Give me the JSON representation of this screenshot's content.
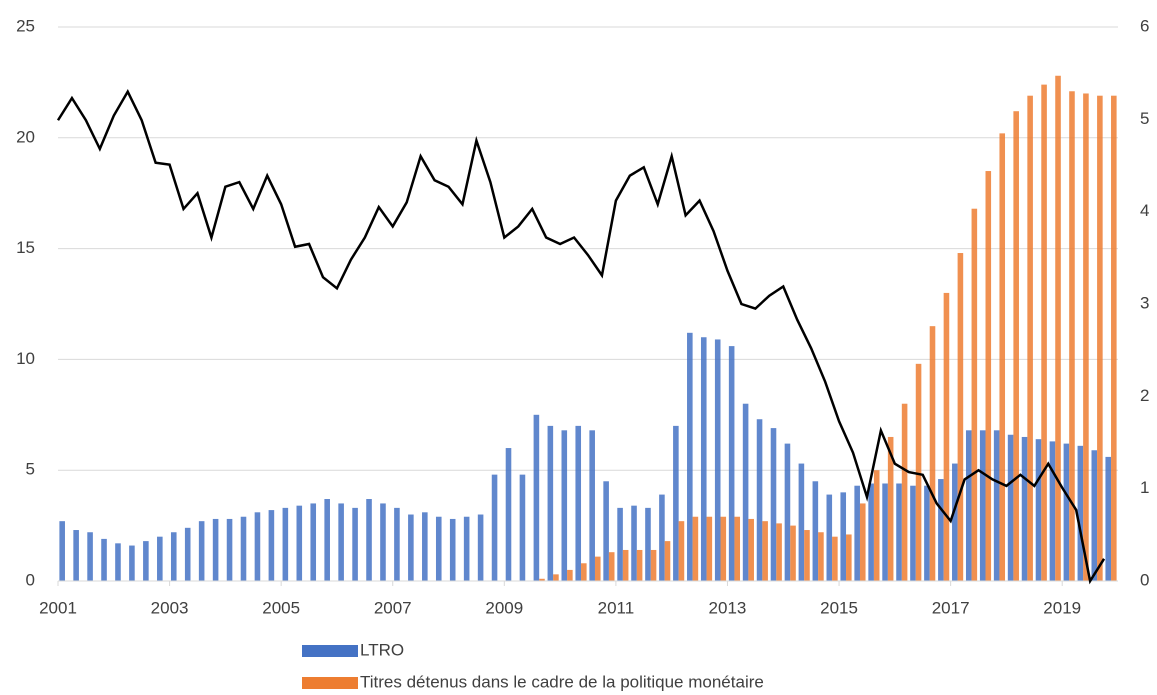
{
  "chart_data": {
    "type": "bar",
    "x": [
      2001,
      2001.25,
      2001.5,
      2001.75,
      2002,
      2002.25,
      2002.5,
      2002.75,
      2003,
      2003.25,
      2003.5,
      2003.75,
      2004,
      2004.25,
      2004.5,
      2004.75,
      2005,
      2005.25,
      2005.5,
      2005.75,
      2006,
      2006.25,
      2006.5,
      2006.75,
      2007,
      2007.25,
      2007.5,
      2007.75,
      2008,
      2008.25,
      2008.5,
      2008.75,
      2009,
      2009.25,
      2009.5,
      2009.75,
      2010,
      2010.25,
      2010.5,
      2010.75,
      2011,
      2011.25,
      2011.5,
      2011.75,
      2012,
      2012.25,
      2012.5,
      2012.75,
      2013,
      2013.25,
      2013.5,
      2013.75,
      2014,
      2014.25,
      2014.5,
      2014.75,
      2015,
      2015.25,
      2015.5,
      2015.75,
      2016,
      2016.25,
      2016.5,
      2016.75,
      2017,
      2017.25,
      2017.5,
      2017.75,
      2018,
      2018.25,
      2018.5,
      2018.75,
      2019,
      2019.25,
      2019.5,
      2019.75
    ],
    "series": [
      {
        "name": "LTRO",
        "color": "#4472c4",
        "values": [
          2.7,
          2.3,
          2.2,
          1.9,
          1.7,
          1.6,
          1.8,
          2.0,
          2.2,
          2.4,
          2.7,
          2.8,
          2.8,
          2.9,
          3.1,
          3.2,
          3.3,
          3.4,
          3.5,
          3.7,
          3.5,
          3.3,
          3.7,
          3.5,
          3.3,
          3.0,
          3.1,
          2.9,
          2.8,
          2.9,
          3.0,
          4.8,
          6.0,
          4.8,
          7.5,
          7.0,
          6.8,
          7.0,
          6.8,
          4.5,
          3.3,
          3.4,
          3.3,
          3.9,
          7.0,
          11.2,
          11.0,
          10.9,
          10.6,
          8.0,
          7.3,
          6.9,
          6.2,
          5.3,
          4.5,
          3.9,
          4.0,
          4.3,
          4.4,
          4.4,
          4.4,
          4.3,
          4.3,
          4.6,
          5.3,
          6.8,
          6.8,
          6.8,
          6.6,
          6.5,
          6.4,
          6.3,
          6.2,
          6.1,
          5.9,
          5.6
        ]
      },
      {
        "name": "Titres détenus dans le cadre de la politique monétaire",
        "color": "#ed7d31",
        "values": [
          0,
          0,
          0,
          0,
          0,
          0,
          0,
          0,
          0,
          0,
          0,
          0,
          0,
          0,
          0,
          0,
          0,
          0,
          0,
          0,
          0,
          0,
          0,
          0,
          0,
          0,
          0,
          0,
          0,
          0,
          0,
          0,
          0,
          0,
          0.1,
          0.3,
          0.5,
          0.8,
          1.1,
          1.3,
          1.4,
          1.4,
          1.4,
          1.8,
          2.7,
          2.9,
          2.9,
          2.9,
          2.9,
          2.8,
          2.7,
          2.6,
          2.5,
          2.3,
          2.2,
          2.0,
          2.1,
          3.5,
          5.0,
          6.5,
          8.0,
          9.8,
          11.5,
          13.0,
          14.8,
          16.8,
          18.5,
          20.2,
          21.2,
          21.9,
          22.4,
          22.8,
          22.1,
          22.0,
          21.9,
          21.9
        ]
      },
      {
        "type": "line",
        "axis": "y2",
        "color": "#000000",
        "values": [
          4.99,
          5.23,
          4.99,
          4.68,
          5.04,
          5.3,
          4.99,
          4.53,
          4.51,
          4.03,
          4.2,
          3.72,
          4.27,
          4.32,
          4.03,
          4.39,
          4.08,
          3.62,
          3.65,
          3.29,
          3.17,
          3.48,
          3.72,
          4.05,
          3.84,
          4.1,
          4.6,
          4.34,
          4.27,
          4.08,
          4.77,
          4.32,
          3.72,
          3.84,
          4.03,
          3.72,
          3.65,
          3.72,
          3.53,
          3.31,
          4.12,
          4.39,
          4.48,
          4.08,
          4.6,
          3.96,
          4.12,
          3.79,
          3.36,
          3.0,
          2.95,
          3.09,
          3.19,
          2.83,
          2.52,
          2.16,
          1.73,
          1.39,
          0.91,
          1.63,
          1.27,
          1.18,
          1.15,
          0.84,
          0.65,
          1.1,
          1.2,
          1.1,
          1.03,
          1.15,
          1.03,
          1.27,
          1.01,
          0.77,
          0,
          0.24
        ]
      }
    ],
    "xlim": [
      2001,
      2020
    ],
    "xticks": [
      2001,
      2003,
      2005,
      2007,
      2009,
      2011,
      2013,
      2015,
      2017,
      2019
    ],
    "ylim": [
      0,
      25
    ],
    "yticks": [
      0,
      5,
      10,
      15,
      20,
      25
    ],
    "y2lim": [
      0,
      6
    ],
    "y2ticks": [
      0,
      1,
      2,
      3,
      4,
      5,
      6
    ],
    "grid": true
  }
}
